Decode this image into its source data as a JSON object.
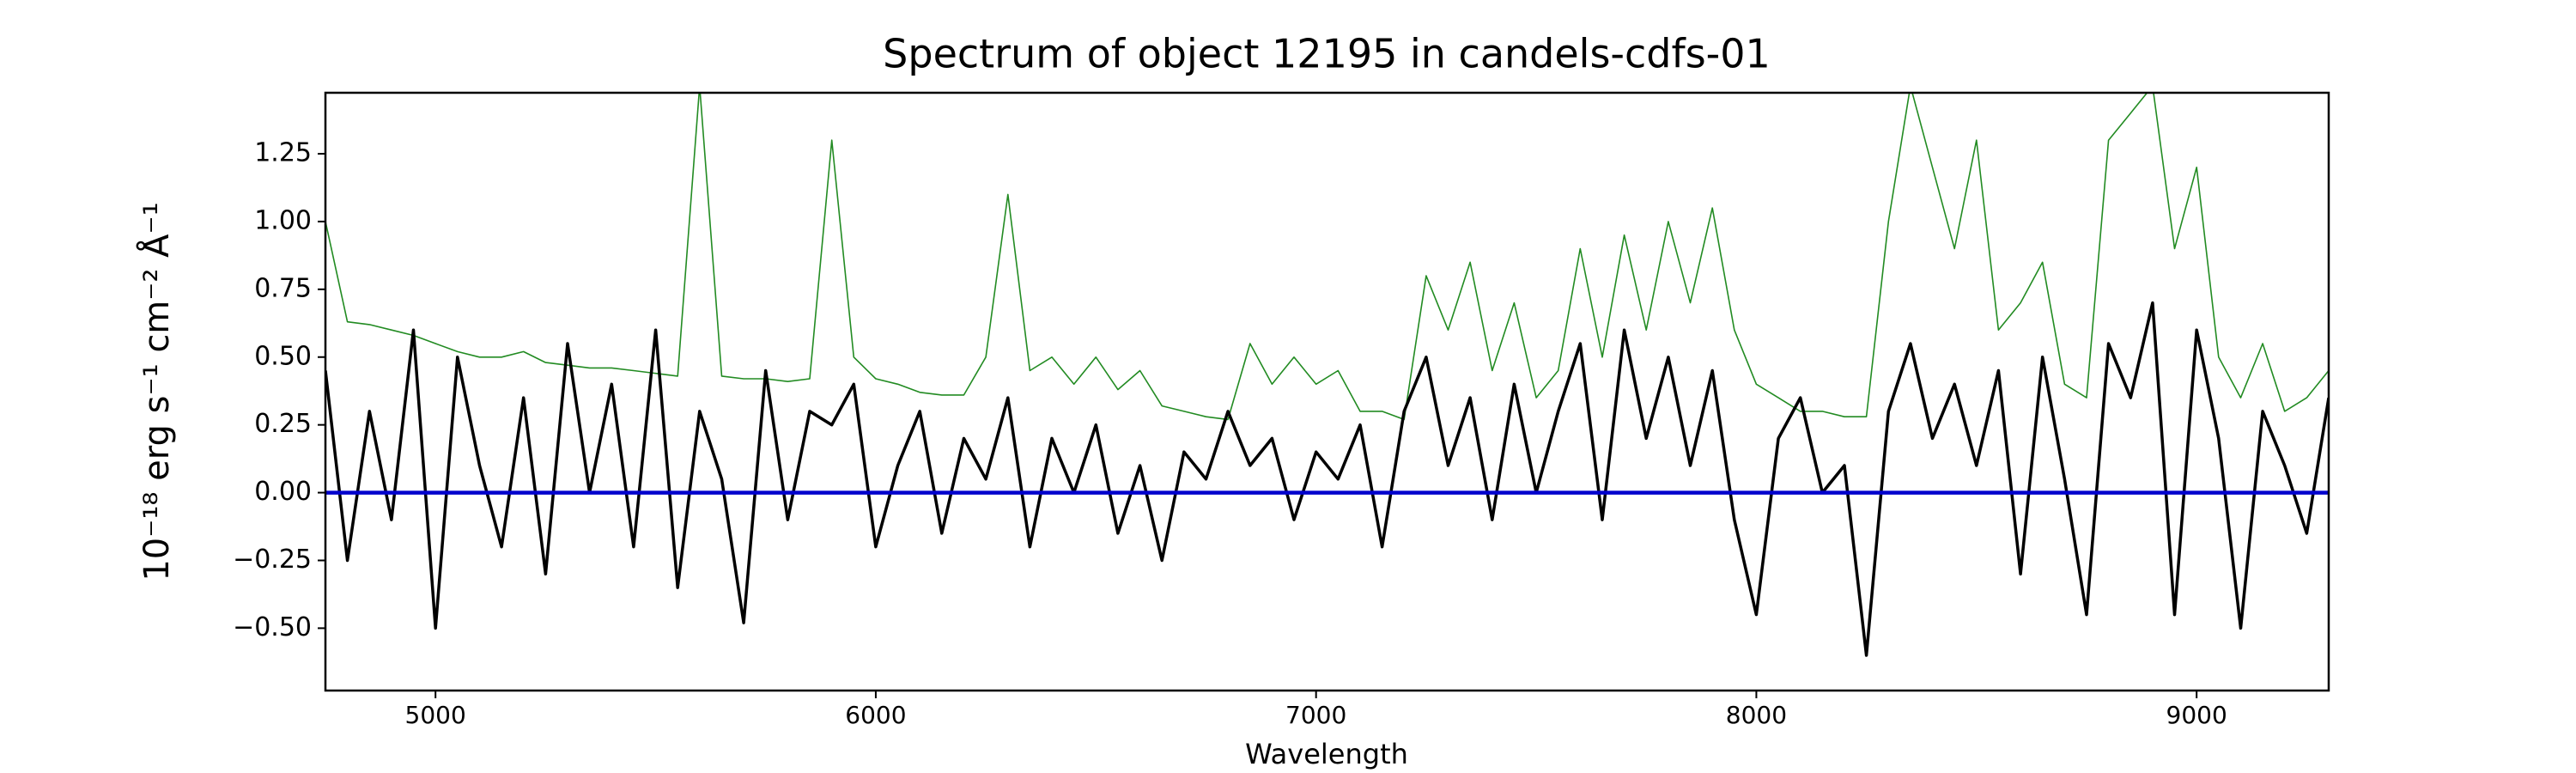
{
  "chart_data": {
    "type": "line",
    "title": "Spectrum of object 12195 in candels-cdfs-01",
    "xlabel": "Wavelength",
    "ylabel": "10⁻¹⁸ erg s⁻¹ cm⁻² Å⁻¹",
    "x": [
      4750,
      4800,
      4850,
      4900,
      4950,
      5000,
      5050,
      5100,
      5150,
      5200,
      5250,
      5300,
      5350,
      5400,
      5450,
      5500,
      5550,
      5600,
      5650,
      5700,
      5750,
      5800,
      5850,
      5900,
      5950,
      6000,
      6050,
      6100,
      6150,
      6200,
      6250,
      6300,
      6350,
      6400,
      6450,
      6500,
      6550,
      6600,
      6650,
      6700,
      6750,
      6800,
      6850,
      6900,
      6950,
      7000,
      7050,
      7100,
      7150,
      7200,
      7250,
      7300,
      7350,
      7400,
      7450,
      7500,
      7550,
      7600,
      7650,
      7700,
      7750,
      7800,
      7850,
      7900,
      7950,
      8000,
      8050,
      8100,
      8150,
      8200,
      8250,
      8300,
      8350,
      8400,
      8450,
      8500,
      8550,
      8600,
      8650,
      8700,
      8750,
      8800,
      8850,
      8900,
      8950,
      9000,
      9050,
      9100,
      9150,
      9200,
      9250,
      9300
    ],
    "series": [
      {
        "color": "#228b22",
        "values": [
          1.0,
          0.63,
          0.62,
          0.6,
          0.58,
          0.55,
          0.52,
          0.5,
          0.5,
          0.52,
          0.48,
          0.47,
          0.46,
          0.46,
          0.45,
          0.44,
          0.43,
          1.5,
          0.43,
          0.42,
          0.42,
          0.41,
          0.42,
          1.3,
          0.5,
          0.42,
          0.4,
          0.37,
          0.36,
          0.36,
          0.5,
          1.1,
          0.45,
          0.5,
          0.4,
          0.5,
          0.38,
          0.45,
          0.32,
          0.3,
          0.28,
          0.27,
          0.55,
          0.4,
          0.5,
          0.4,
          0.45,
          0.3,
          0.3,
          0.27,
          0.8,
          0.6,
          0.85,
          0.45,
          0.7,
          0.35,
          0.45,
          0.9,
          0.5,
          0.95,
          0.6,
          1.0,
          0.7,
          1.05,
          0.6,
          0.4,
          0.35,
          0.3,
          0.3,
          0.28,
          0.28,
          1.0,
          1.5,
          1.2,
          0.9,
          1.3,
          0.6,
          0.7,
          0.85,
          0.4,
          0.35,
          1.3,
          1.4,
          1.5,
          0.9,
          1.2,
          0.5,
          0.35,
          0.55,
          0.3,
          0.35,
          0.45
        ],
        "width": 1.6
      },
      {
        "color": "#000000",
        "values": [
          0.45,
          -0.25,
          0.3,
          -0.1,
          0.6,
          -0.5,
          0.5,
          0.1,
          -0.2,
          0.35,
          -0.3,
          0.55,
          0.0,
          0.4,
          -0.2,
          0.6,
          -0.35,
          0.3,
          0.05,
          -0.48,
          0.45,
          -0.1,
          0.3,
          0.25,
          0.4,
          -0.2,
          0.1,
          0.3,
          -0.15,
          0.2,
          0.05,
          0.35,
          -0.2,
          0.2,
          0.0,
          0.25,
          -0.15,
          0.1,
          -0.25,
          0.15,
          0.05,
          0.3,
          0.1,
          0.2,
          -0.1,
          0.15,
          0.05,
          0.25,
          -0.2,
          0.3,
          0.5,
          0.1,
          0.35,
          -0.1,
          0.4,
          0.0,
          0.3,
          0.55,
          -0.1,
          0.6,
          0.2,
          0.5,
          0.1,
          0.45,
          -0.1,
          -0.45,
          0.2,
          0.35,
          0.0,
          0.1,
          -0.6,
          0.3,
          0.55,
          0.2,
          0.4,
          0.1,
          0.45,
          -0.3,
          0.5,
          0.05,
          -0.45,
          0.55,
          0.35,
          0.7,
          -0.45,
          0.6,
          0.2,
          -0.5,
          0.3,
          0.1,
          -0.15,
          0.35
        ],
        "width": 3.5
      },
      {
        "color": "#0000cd",
        "values": [
          0,
          0,
          0,
          0,
          0,
          0,
          0,
          0,
          0,
          0,
          0,
          0,
          0,
          0,
          0,
          0,
          0,
          0,
          0,
          0,
          0,
          0,
          0,
          0,
          0,
          0,
          0,
          0,
          0,
          0,
          0,
          0,
          0,
          0,
          0,
          0,
          0,
          0,
          0,
          0,
          0,
          0,
          0,
          0,
          0,
          0,
          0,
          0,
          0,
          0,
          0,
          0,
          0,
          0,
          0,
          0,
          0,
          0,
          0,
          0,
          0,
          0,
          0,
          0,
          0,
          0,
          0,
          0,
          0,
          0,
          0,
          0,
          0,
          0,
          0,
          0,
          0,
          0,
          0,
          0,
          0,
          0,
          0,
          0,
          0,
          0,
          0,
          0,
          0,
          0,
          0,
          0
        ],
        "width": 4.5
      }
    ],
    "xlim": [
      4750,
      9300
    ],
    "xticks": [
      5000,
      6000,
      7000,
      8000,
      9000
    ],
    "ylim": [
      -0.73,
      1.475
    ],
    "yticks": [
      {
        "value": -0.5,
        "label": "−0.50"
      },
      {
        "value": -0.25,
        "label": "−0.25"
      },
      {
        "value": 0,
        "label": "0.00"
      },
      0.25,
      {
        "value": 0.5,
        "label": "0.50"
      },
      0.75,
      {
        "value": 1,
        "label": "1.00"
      },
      1.25
    ],
    "grid": false
  }
}
